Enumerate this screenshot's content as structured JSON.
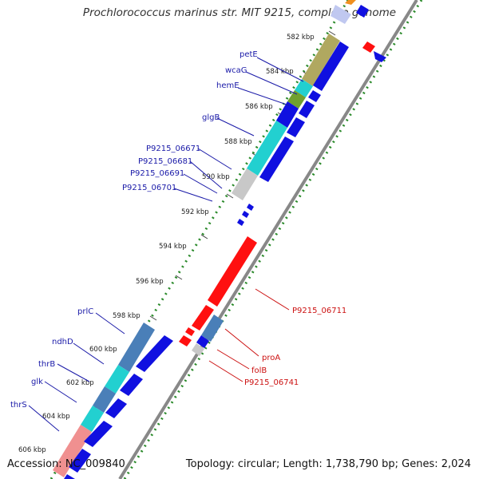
{
  "title": "Prochlorococcus marinus str. MIT 9215, complete genome",
  "accession": "Accession: NC_009840",
  "stats": "Topology: circular; Length: 1,738,790 bp; Genes: 2,024",
  "ticks": [
    "582 kbp",
    "584 kbp",
    "586 kbp",
    "588 kbp",
    "590 kbp",
    "592 kbp",
    "594 kbp",
    "596 kbp",
    "598 kbp",
    "600 kbp",
    "602 kbp",
    "604 kbp",
    "606 kbp"
  ],
  "labels_left": [
    "petE",
    "wcaG",
    "hemE",
    "glgB",
    "P9215_06671",
    "P9215_06681",
    "P9215_06691",
    "P9215_06701",
    "prlC",
    "ndhD",
    "thrB",
    "glk",
    "thrS"
  ],
  "labels_right": [
    "P9215_06711",
    "proA",
    "folB",
    "P9215_06741"
  ],
  "colors": {
    "forward": "#1010e0",
    "reverse": "#ff1010",
    "cog_cyan": "#22d0d0",
    "cog_steel": "#4a7fb8",
    "cog_olive": "#b0a860",
    "cog_grey": "#c8c8c8",
    "cog_pink": "#f09090",
    "ring_grey": "#777777",
    "dots": "#2a8a2a"
  }
}
